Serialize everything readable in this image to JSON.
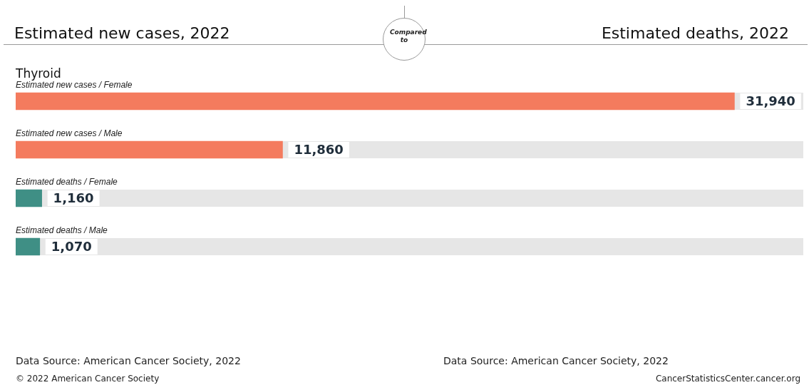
{
  "chart_data": {
    "type": "bar",
    "orientation": "horizontal",
    "title": "Thyroid",
    "categories": [
      "Estimated new cases / Female",
      "Estimated new cases / Male",
      "Estimated deaths / Female",
      "Estimated deaths / Male"
    ],
    "values": [
      31940,
      11860,
      1160,
      1070
    ],
    "colors": [
      "#f47b5e",
      "#f47b5e",
      "#3f8f85",
      "#3f8f85"
    ],
    "data_labels": true,
    "value_labels": [
      "31,940",
      "11,860",
      "1,160",
      "1,070"
    ],
    "legend": false,
    "annotations": [
      "Estimated new cases, 2022",
      "Compared to",
      "Estimated deaths, 2022",
      "Data Source: American Cancer Society, 2022",
      "Data Source: American Cancer Society, 2022",
      "© 2022 American Cancer Society",
      "CancerStatisticsCenter.cancer.org"
    ]
  }
}
